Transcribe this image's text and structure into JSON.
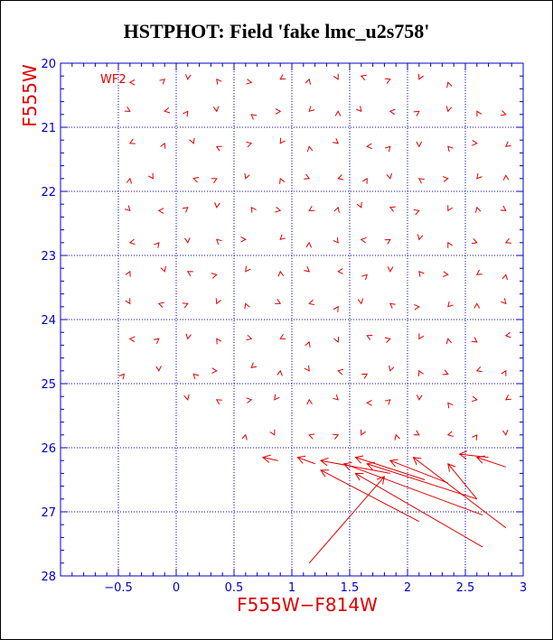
{
  "colors": {
    "axis": "#0000c8",
    "data": "#e00000",
    "label": "#e00000",
    "title": "#000000"
  },
  "chart_data": {
    "type": "scatter",
    "title": "HSTPHOT: Field 'fake lmc_u2s758'",
    "xlabel": "F555W−F814W",
    "ylabel": "F555W",
    "panel_label": "WF2",
    "xlim": [
      -1.0,
      3.0
    ],
    "ylim": [
      28,
      20
    ],
    "y_inverted": true,
    "grid": true,
    "x_major_ticks": [
      -0.5,
      0,
      0.5,
      1,
      1.5,
      2,
      2.5,
      3
    ],
    "x_tick_labels": [
      "−0.5",
      "0",
      "0.5",
      "1",
      "1.5",
      "2",
      "2.5",
      "3"
    ],
    "y_major_ticks": [
      20,
      21,
      22,
      23,
      24,
      25,
      26,
      27,
      28
    ],
    "y_tick_labels": [
      "20",
      "21",
      "22",
      "23",
      "24",
      "25",
      "26",
      "27",
      "28"
    ],
    "marker": "small arrows (input → recovered)",
    "points_x": [
      -0.4,
      -0.1,
      0.1,
      0.35,
      0.65,
      0.9,
      1.15,
      1.4,
      1.6,
      1.85,
      2.1,
      2.35,
      -0.4,
      -0.1,
      0.1,
      0.35,
      0.65,
      0.9,
      1.15,
      1.4,
      1.6,
      1.85,
      2.1,
      2.35,
      2.6,
      2.85,
      -0.4,
      -0.1,
      0.15,
      0.35,
      0.65,
      0.9,
      1.15,
      1.4,
      1.65,
      1.85,
      2.1,
      2.35,
      2.6,
      2.85,
      -0.4,
      -0.2,
      0.15,
      0.35,
      0.6,
      0.9,
      1.15,
      1.4,
      1.65,
      1.85,
      2.1,
      2.35,
      2.6,
      2.85,
      -0.4,
      -0.15,
      0.1,
      0.35,
      0.65,
      0.9,
      1.15,
      1.4,
      1.6,
      1.85,
      2.1,
      2.35,
      2.6,
      2.85,
      -0.4,
      -0.15,
      0.1,
      0.35,
      0.6,
      0.9,
      1.15,
      1.4,
      1.6,
      1.85,
      2.1,
      2.35,
      2.6,
      2.85,
      -0.4,
      -0.1,
      0.1,
      0.35,
      0.6,
      0.9,
      1.15,
      1.4,
      1.65,
      1.85,
      2.1,
      2.35,
      2.6,
      2.85,
      -0.4,
      -0.15,
      0.1,
      0.35,
      0.6,
      0.9,
      1.15,
      1.4,
      1.6,
      1.85,
      2.1,
      2.35,
      2.6,
      2.85,
      -0.4,
      -0.15,
      0.1,
      0.35,
      0.65,
      0.9,
      1.15,
      1.4,
      1.65,
      1.85,
      2.1,
      2.35,
      2.6,
      2.85,
      -0.45,
      -0.15,
      0.15,
      0.35,
      0.65,
      0.9,
      1.15,
      1.4,
      1.65,
      1.85,
      2.1,
      2.35,
      2.6,
      2.85,
      0.1,
      0.35,
      0.65,
      0.85,
      1.15,
      1.4,
      1.65,
      1.85,
      2.1,
      2.35,
      2.6,
      2.85,
      0.6,
      0.85,
      1.15,
      1.4,
      1.6,
      1.9,
      2.1,
      2.35,
      2.6,
      2.85
    ],
    "points_y": [
      20.3,
      20.25,
      20.25,
      20.25,
      20.3,
      20.25,
      20.25,
      20.25,
      20.2,
      20.25,
      20.25,
      20.3,
      20.75,
      20.75,
      20.75,
      20.75,
      20.8,
      20.75,
      20.75,
      20.75,
      20.75,
      20.75,
      20.75,
      20.75,
      20.75,
      20.8,
      21.25,
      21.25,
      21.25,
      21.3,
      21.25,
      21.25,
      21.3,
      21.25,
      21.3,
      21.3,
      21.3,
      21.3,
      21.25,
      21.3,
      21.8,
      21.8,
      21.8,
      21.8,
      21.8,
      21.8,
      21.8,
      21.8,
      21.8,
      21.8,
      21.8,
      21.8,
      21.8,
      21.75,
      22.3,
      22.3,
      22.25,
      22.25,
      22.25,
      22.3,
      22.3,
      22.25,
      22.25,
      22.25,
      22.3,
      22.3,
      22.25,
      22.3,
      22.8,
      22.8,
      22.8,
      22.75,
      22.75,
      22.75,
      22.8,
      22.8,
      22.75,
      22.75,
      22.75,
      22.8,
      22.8,
      22.8,
      23.25,
      23.25,
      23.25,
      23.3,
      23.25,
      23.25,
      23.25,
      23.25,
      23.3,
      23.25,
      23.25,
      23.3,
      23.3,
      23.3,
      23.75,
      23.75,
      23.75,
      23.75,
      23.75,
      23.75,
      23.75,
      23.8,
      23.75,
      23.75,
      23.8,
      23.8,
      23.75,
      23.75,
      24.3,
      24.3,
      24.3,
      24.3,
      24.3,
      24.3,
      24.35,
      24.35,
      24.25,
      24.3,
      24.3,
      24.3,
      24.35,
      24.25,
      24.85,
      24.8,
      24.85,
      24.8,
      24.75,
      24.8,
      24.8,
      24.8,
      24.85,
      24.8,
      24.8,
      24.85,
      24.8,
      24.8,
      25.25,
      25.25,
      25.25,
      25.25,
      25.25,
      25.25,
      25.3,
      25.25,
      25.25,
      25.3,
      25.25,
      25.25,
      25.8,
      25.8,
      25.8,
      25.8,
      25.8,
      25.8,
      25.8,
      25.8,
      25.8,
      25.8
    ],
    "long_arrows": [
      {
        "from": [
          0.75,
          26.15
        ],
        "to": [
          0.88,
          26.2
        ]
      },
      {
        "from": [
          1.05,
          26.15
        ],
        "to": [
          1.2,
          26.25
        ]
      },
      {
        "from": [
          1.25,
          26.2
        ],
        "to": [
          1.85,
          26.4
        ]
      },
      {
        "from": [
          1.55,
          26.15
        ],
        "to": [
          2.15,
          26.5
        ]
      },
      {
        "from": [
          1.65,
          26.25
        ],
        "to": [
          2.6,
          26.8
        ]
      },
      {
        "from": [
          1.45,
          26.25
        ],
        "to": [
          2.65,
          27.05
        ]
      },
      {
        "from": [
          1.25,
          26.35
        ],
        "to": [
          2.1,
          27.15
        ]
      },
      {
        "from": [
          1.85,
          26.2
        ],
        "to": [
          2.35,
          26.55
        ]
      },
      {
        "from": [
          2.05,
          26.15
        ],
        "to": [
          2.85,
          27.25
        ]
      },
      {
        "from": [
          1.55,
          26.4
        ],
        "to": [
          2.65,
          27.55
        ]
      },
      {
        "from": [
          1.8,
          26.45
        ],
        "to": [
          1.15,
          27.8
        ]
      },
      {
        "from": [
          2.35,
          26.25
        ],
        "to": [
          2.6,
          26.8
        ]
      },
      {
        "from": [
          2.45,
          26.1
        ],
        "to": [
          2.7,
          26.15
        ]
      },
      {
        "from": [
          2.6,
          26.15
        ],
        "to": [
          2.85,
          26.3
        ]
      }
    ]
  }
}
